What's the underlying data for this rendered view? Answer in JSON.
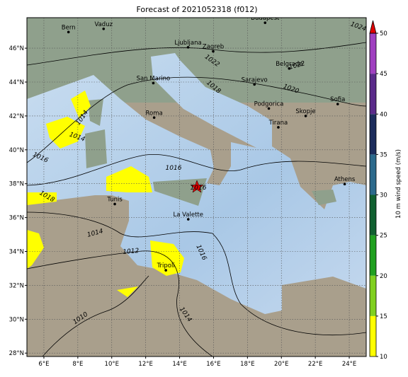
{
  "title": "Forecast of 2021052318 (f012)",
  "map": {
    "lon_range": [
      5,
      25
    ],
    "lat_range": [
      27.8,
      47.8
    ],
    "lon_ticks": [
      {
        "value": 6,
        "label": "6°E"
      },
      {
        "value": 8,
        "label": "8°E"
      },
      {
        "value": 10,
        "label": "10°E"
      },
      {
        "value": 12,
        "label": "12°E"
      },
      {
        "value": 14,
        "label": "14°E"
      },
      {
        "value": 16,
        "label": "16°E"
      },
      {
        "value": 18,
        "label": "18°E"
      },
      {
        "value": 20,
        "label": "20°E"
      },
      {
        "value": 22,
        "label": "22°E"
      },
      {
        "value": 24,
        "label": "24°E"
      }
    ],
    "lat_ticks": [
      {
        "value": 28,
        "label": "28°N"
      },
      {
        "value": 30,
        "label": "30°N"
      },
      {
        "value": 32,
        "label": "32°N"
      },
      {
        "value": 34,
        "label": "34°N"
      },
      {
        "value": 36,
        "label": "36°N"
      },
      {
        "value": 38,
        "label": "38°N"
      },
      {
        "value": 40,
        "label": "40°N"
      },
      {
        "value": 42,
        "label": "42°N"
      },
      {
        "value": 44,
        "label": "44°N"
      },
      {
        "value": 46,
        "label": "46°N"
      }
    ],
    "cities": [
      {
        "name": "Bern",
        "lon": 7.45,
        "lat": 46.95
      },
      {
        "name": "Vaduz",
        "lon": 9.52,
        "lat": 47.14
      },
      {
        "name": "Budapest",
        "lon": 19.04,
        "lat": 47.5
      },
      {
        "name": "Ljubljana",
        "lon": 14.5,
        "lat": 46.05
      },
      {
        "name": "Zagreb",
        "lon": 15.98,
        "lat": 45.81
      },
      {
        "name": "Belgrade",
        "lon": 20.46,
        "lat": 44.8
      },
      {
        "name": "Sarajevo",
        "lon": 18.41,
        "lat": 43.86
      },
      {
        "name": "San Marino",
        "lon": 12.45,
        "lat": 43.94
      },
      {
        "name": "Roma",
        "lon": 12.5,
        "lat": 41.9
      },
      {
        "name": "Podgorica",
        "lon": 19.26,
        "lat": 42.44
      },
      {
        "name": "Skopje",
        "lon": 21.43,
        "lat": 42.0
      },
      {
        "name": "Tirana",
        "lon": 19.82,
        "lat": 41.33
      },
      {
        "name": "Sofia",
        "lon": 23.32,
        "lat": 42.7
      },
      {
        "name": "Athens",
        "lon": 23.73,
        "lat": 37.98
      },
      {
        "name": "Tunis",
        "lon": 10.18,
        "lat": 36.8
      },
      {
        "name": "La Valette",
        "lon": 14.51,
        "lat": 35.9
      },
      {
        "name": "Tripoli",
        "lon": 13.19,
        "lat": 32.89
      }
    ],
    "isobar_labels": [
      "1024",
      "1022",
      "1022",
      "1020",
      "1018",
      "1016",
      "1014",
      "1014",
      "1016",
      "1018",
      "1014",
      "1012",
      "1016",
      "1010",
      "1014",
      "1016"
    ]
  },
  "colorbar": {
    "label": "10 m wind speed (m/s)",
    "range": [
      10,
      50
    ],
    "ticks": [
      10,
      15,
      20,
      25,
      30,
      35,
      40,
      45,
      50
    ],
    "colors": [
      "#ffff00",
      "#80d020",
      "#20a020",
      "#106030",
      "#2c6a8c",
      "#1c2c5c",
      "#5a2a8a",
      "#a040c0"
    ]
  }
}
